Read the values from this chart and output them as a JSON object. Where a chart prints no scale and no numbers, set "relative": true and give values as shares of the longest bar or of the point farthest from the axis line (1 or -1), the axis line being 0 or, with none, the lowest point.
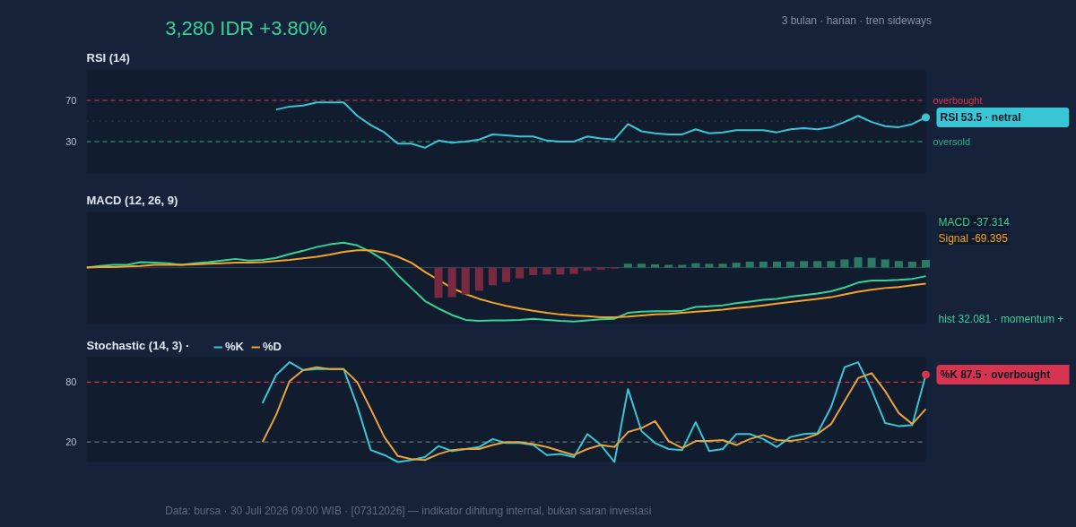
{
  "chart_data": [
    {
      "type": "other",
      "title": "3,280 IDR +3.80%",
      "subtitle": "3 bulan · harian · tren sideways"
    },
    {
      "type": "line",
      "title": "RSI (14)",
      "categories": [
        null,
        null,
        null,
        null,
        null,
        null,
        null,
        null,
        null,
        null,
        null,
        null,
        null,
        null,
        null,
        null,
        null,
        null,
        null,
        null,
        null,
        null,
        null,
        null,
        null,
        null,
        null,
        null,
        null,
        null,
        null,
        null,
        null,
        null,
        null,
        null,
        null,
        null,
        null,
        null,
        null,
        null,
        null,
        null,
        null,
        null,
        null,
        null,
        null,
        null,
        null,
        null,
        null,
        null,
        null,
        null,
        null,
        null,
        null,
        null,
        null,
        null,
        null
      ],
      "series": [
        {
          "color": "#38c6d4",
          "values": [
            null,
            null,
            null,
            null,
            null,
            null,
            null,
            null,
            null,
            null,
            null,
            null,
            null,
            null,
            61,
            64,
            65,
            68,
            68,
            68,
            55,
            46,
            39,
            28,
            28,
            24,
            31,
            29,
            30,
            32,
            37,
            36,
            35,
            35,
            31,
            30,
            30,
            35,
            33,
            32,
            47,
            40,
            38,
            37,
            37,
            42,
            38,
            39,
            41,
            41,
            41,
            39,
            42,
            43,
            42,
            44,
            49,
            55,
            49,
            45,
            44,
            47,
            53.5
          ]
        }
      ],
      "ylim": [
        0,
        100
      ],
      "yticks": [
        30,
        70
      ],
      "tick_labels": "y",
      "ref_lines": [
        {
          "axis": "y",
          "value": 70,
          "label": "overbought",
          "color": "#d9344f",
          "line_style": "dashed"
        },
        {
          "axis": "y",
          "value": 50,
          "label": null,
          "color": "#3a4a60",
          "line_style": "dotted"
        },
        {
          "axis": "y",
          "value": 30,
          "label": "oversold",
          "color": "#2fb380",
          "line_style": "dashed"
        }
      ],
      "annotations": [
        "RSI 53.5 · netral"
      ]
    },
    {
      "type": "line",
      "title": "MACD (12, 26, 9)",
      "relative": true,
      "tick_labels": false,
      "categories": [
        null,
        null,
        null,
        null,
        null,
        null,
        null,
        null,
        null,
        null,
        null,
        null,
        null,
        null,
        null,
        null,
        null,
        null,
        null,
        null,
        null,
        null,
        null,
        null,
        null,
        null,
        null,
        null,
        null,
        null,
        null,
        null,
        null,
        null,
        null,
        null,
        null,
        null,
        null,
        null,
        null,
        null,
        null,
        null,
        null,
        null,
        null,
        null,
        null,
        null,
        null,
        null,
        null,
        null,
        null,
        null,
        null,
        null,
        null,
        null,
        null,
        null,
        null
      ],
      "series": [
        {
          "color": "#34d399",
          "values": [
            0,
            0.03,
            0.05,
            0.05,
            0.1,
            0.09,
            0.08,
            0.05,
            0.08,
            0.1,
            0.13,
            0.16,
            0.13,
            0.14,
            0.18,
            0.25,
            0.31,
            0.38,
            0.43,
            0.46,
            0.41,
            0.29,
            0.13,
            -0.14,
            -0.38,
            -0.62,
            -0.76,
            -0.88,
            -0.97,
            -0.99,
            -0.98,
            -0.98,
            -0.97,
            -0.95,
            -0.97,
            -0.99,
            -1,
            -0.98,
            -0.96,
            -0.95,
            -0.84,
            -0.82,
            -0.81,
            -0.81,
            -0.8,
            -0.73,
            -0.72,
            -0.7,
            -0.66,
            -0.63,
            -0.6,
            -0.58,
            -0.54,
            -0.51,
            -0.48,
            -0.44,
            -0.37,
            -0.28,
            -0.24,
            -0.24,
            -0.23,
            -0.21,
            -0.16
          ]
        },
        {
          "color": "#f5a524",
          "values": [
            0,
            0.01,
            0.01,
            0.02,
            0.03,
            0.05,
            0.05,
            0.05,
            0.06,
            0.07,
            0.08,
            0.09,
            0.09,
            0.1,
            0.12,
            0.14,
            0.17,
            0.2,
            0.24,
            0.29,
            0.32,
            0.32,
            0.28,
            0.2,
            0.09,
            -0.08,
            -0.23,
            -0.38,
            -0.49,
            -0.58,
            -0.65,
            -0.71,
            -0.76,
            -0.8,
            -0.84,
            -0.87,
            -0.89,
            -0.9,
            -0.92,
            -0.92,
            -0.91,
            -0.89,
            -0.87,
            -0.86,
            -0.84,
            -0.82,
            -0.8,
            -0.78,
            -0.75,
            -0.73,
            -0.7,
            -0.67,
            -0.64,
            -0.61,
            -0.58,
            -0.55,
            -0.5,
            -0.45,
            -0.41,
            -0.38,
            -0.36,
            -0.33,
            -0.3
          ]
        },
        {
          "type": "bar",
          "values": [
            null,
            null,
            null,
            null,
            null,
            null,
            null,
            null,
            null,
            null,
            null,
            null,
            null,
            null,
            null,
            null,
            null,
            null,
            null,
            null,
            null,
            null,
            null,
            null,
            null,
            null,
            -0.56,
            -0.55,
            -0.5,
            -0.43,
            -0.33,
            -0.27,
            -0.2,
            -0.14,
            -0.13,
            -0.13,
            -0.12,
            -0.06,
            -0.04,
            -0.02,
            0.07,
            0.07,
            0.06,
            0.05,
            0.05,
            0.08,
            0.07,
            0.07,
            0.09,
            0.11,
            0.11,
            0.11,
            0.11,
            0.12,
            0.12,
            0.12,
            0.15,
            0.19,
            0.18,
            0.15,
            0.12,
            0.11,
            0.14
          ],
          "colors": [
            null,
            null,
            null,
            null,
            null,
            null,
            null,
            null,
            null,
            null,
            null,
            null,
            null,
            null,
            null,
            null,
            null,
            null,
            null,
            null,
            null,
            null,
            null,
            null,
            null,
            null,
            "#7a2a40",
            "#7a2a40",
            "#7a2a40",
            "#7a2a40",
            "#7a2a40",
            "#7a2a40",
            "#7a2a40",
            "#7a2a40",
            "#7a2a40",
            "#7a2a40",
            "#7a2a40",
            "#7a2a40",
            "#7a2a40",
            "#7a2a40",
            "#2a7a66",
            "#2a7a66",
            "#2a7a66",
            "#2a7a66",
            "#2a7a66",
            "#2a7a66",
            "#2a7a66",
            "#2a7a66",
            "#2a7a66",
            "#2a7a66",
            "#2a7a66",
            "#2a7a66",
            "#2a7a66",
            "#2a7a66",
            "#2a7a66",
            "#2a7a66",
            "#2a7a66",
            "#2a7a66",
            "#2a7a66",
            "#2a7a66",
            "#2a7a66",
            "#2a7a66",
            "#2a7a66"
          ]
        }
      ],
      "annotations": [
        "MACD -37.314",
        "Signal -69.395",
        "hist 32.081 · momentum +"
      ]
    },
    {
      "type": "line",
      "title": "Stochastic (14, 3) ·",
      "categories": [
        null,
        null,
        null,
        null,
        null,
        null,
        null,
        null,
        null,
        null,
        null,
        null,
        null,
        null,
        null,
        null,
        null,
        null,
        null,
        null,
        null,
        null,
        null,
        null,
        null,
        null,
        null,
        null,
        null,
        null,
        null,
        null,
        null,
        null,
        null,
        null,
        null,
        null,
        null,
        null,
        null,
        null,
        null,
        null,
        null,
        null,
        null,
        null,
        null,
        null,
        null,
        null,
        null,
        null,
        null,
        null,
        null,
        null,
        null,
        null,
        null,
        null,
        null
      ],
      "series": [
        {
          "name": "%K",
          "color": "#38c6d4",
          "values": [
            null,
            null,
            null,
            null,
            null,
            null,
            null,
            null,
            null,
            null,
            null,
            null,
            null,
            59,
            87,
            100,
            92,
            93,
            93,
            93,
            56,
            12,
            7,
            0,
            2,
            5,
            16,
            11,
            13,
            15,
            23,
            19,
            19,
            17,
            7,
            8,
            5,
            28,
            17,
            0,
            73,
            31,
            19,
            13,
            12,
            40,
            11,
            13,
            28,
            28,
            23,
            15,
            25,
            28,
            29,
            55,
            95,
            100,
            72,
            39,
            36,
            37,
            87.5
          ]
        },
        {
          "name": "%D",
          "color": "#e8a33a",
          "values": [
            null,
            null,
            null,
            null,
            null,
            null,
            null,
            null,
            null,
            null,
            null,
            null,
            null,
            20,
            47,
            81,
            92,
            95,
            93,
            93,
            80,
            53,
            25,
            6,
            3,
            2,
            8,
            12,
            13,
            13,
            17,
            20,
            20,
            18,
            15,
            11,
            7,
            13,
            17,
            15,
            30,
            34,
            41,
            21,
            14,
            21,
            21,
            22,
            17,
            23,
            27,
            22,
            21,
            23,
            28,
            38,
            61,
            84,
            89,
            71,
            49,
            38,
            53
          ]
        }
      ],
      "ylim": [
        0,
        105
      ],
      "yticks": [
        20,
        80
      ],
      "tick_labels": "y",
      "legend": "top left",
      "ref_lines": [
        {
          "axis": "y",
          "value": 80,
          "label": null,
          "color": "#d9344f",
          "line_style": "dashed"
        },
        {
          "axis": "y",
          "value": 20,
          "label": null,
          "color": "#5f7a78",
          "line_style": "dashed"
        }
      ],
      "annotations": [
        "%K 87.5 · overbought"
      ]
    },
    {
      "type": "other",
      "annotations": [
        "Data: bursa · 30 Juli 2026 09:00 WIB · [07312026] — indikator dihitung internal, bukan saran investasi"
      ]
    }
  ]
}
